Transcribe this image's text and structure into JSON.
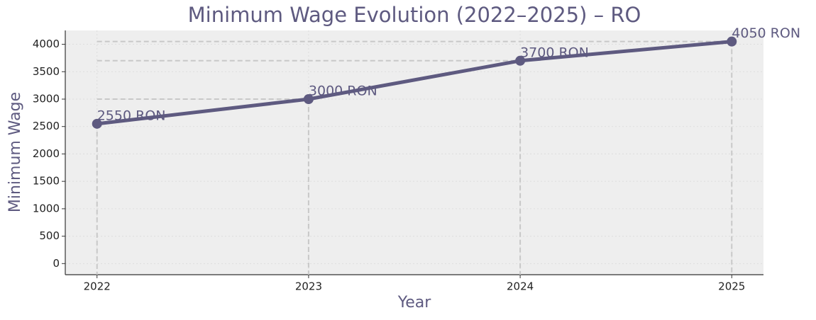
{
  "chart_data": {
    "type": "line",
    "title": "Minimum Wage Evolution (2022–2025) – RO",
    "x_label": "Year",
    "y_label": "Minimum Wage",
    "x": [
      2022,
      2023,
      2024,
      2025
    ],
    "values": [
      2550,
      3000,
      3700,
      4050
    ],
    "value_labels": [
      "2550 RON",
      "3000 RON",
      "3700 RON",
      "4050 RON"
    ],
    "color": "#5e5a80",
    "xlim": [
      2021.85,
      2025.15
    ],
    "xticks": [
      2022,
      2023,
      2024,
      2025
    ],
    "ylim": [
      -202.5,
      4252.5
    ],
    "yticks": [
      0,
      500,
      1000,
      1500,
      2000,
      2500,
      3000,
      3500,
      4000
    ],
    "grid": true
  }
}
